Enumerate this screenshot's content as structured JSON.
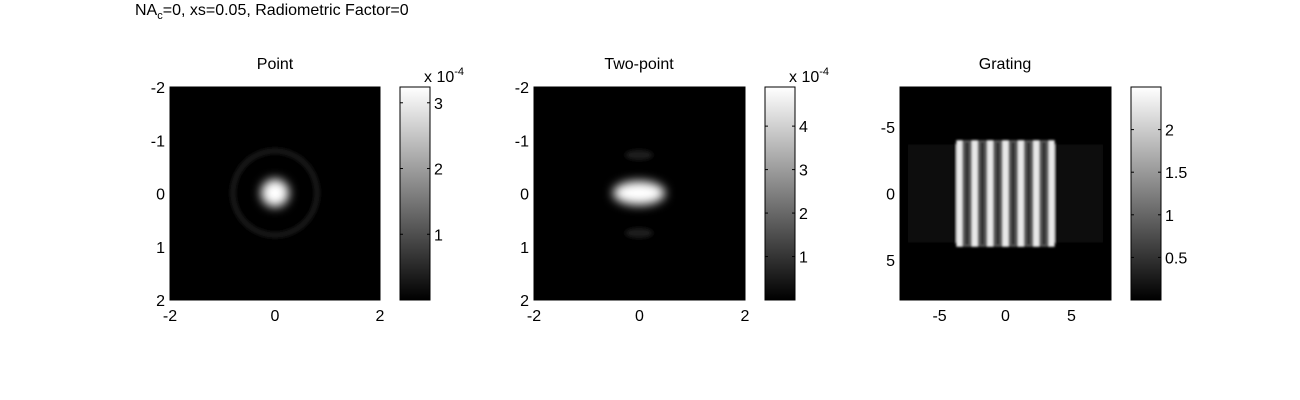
{
  "figure": {
    "suptitle": {
      "prefix": "NA",
      "subscript": "c",
      "suffix": "=0, xs=0.05, Radiometric Factor=0"
    }
  },
  "chart_data": [
    {
      "type": "heatmap",
      "title": "Point",
      "xlabel": "",
      "ylabel": "",
      "xlim": [
        -2,
        2
      ],
      "ylim": [
        -2,
        2
      ],
      "y_direction": "reversed",
      "x_ticks": [
        -2,
        0,
        2
      ],
      "x_tick_labels": [
        "-2",
        "0",
        "2"
      ],
      "y_ticks": [
        -2,
        -1,
        0,
        1,
        2
      ],
      "y_tick_labels": [
        "-2",
        "-1",
        "0",
        "1",
        "2"
      ],
      "colormap": "gray",
      "pattern": "single centered airy spot with faint ring",
      "colorbar": {
        "range": [
          0,
          0.000324
        ],
        "ticks": [
          0.0001,
          0.0002,
          0.0003
        ],
        "tick_labels": [
          "1",
          "2",
          "3"
        ],
        "multiplier": "x 10",
        "exponent": "-4"
      }
    },
    {
      "type": "heatmap",
      "title": "Two-point",
      "xlabel": "",
      "ylabel": "",
      "xlim": [
        -2,
        2
      ],
      "ylim": [
        -2,
        2
      ],
      "y_direction": "reversed",
      "x_ticks": [
        -2,
        0,
        2
      ],
      "x_tick_labels": [
        "-2",
        "0",
        "2"
      ],
      "y_ticks": [
        -2,
        -1,
        0,
        1,
        2
      ],
      "y_tick_labels": [
        "-2",
        "-1",
        "0",
        "1",
        "2"
      ],
      "colormap": "gray",
      "pattern": "two overlapping spots side by side at x=-0.05 and x=0.05",
      "colorbar": {
        "range": [
          0,
          0.00049
        ],
        "ticks": [
          0.0001,
          0.0002,
          0.0003,
          0.0004
        ],
        "tick_labels": [
          "1",
          "2",
          "3",
          "4"
        ],
        "multiplier": "x 10",
        "exponent": "-4"
      }
    },
    {
      "type": "heatmap",
      "title": "Grating",
      "xlabel": "",
      "ylabel": "",
      "xlim": [
        -8,
        8
      ],
      "ylim": [
        -8,
        8
      ],
      "y_direction": "reversed",
      "x_ticks": [
        -5,
        0,
        5
      ],
      "x_tick_labels": [
        "-5",
        "0",
        "5"
      ],
      "y_ticks": [
        -5,
        0,
        5
      ],
      "y_tick_labels": [
        "-5",
        "0",
        "5"
      ],
      "colormap": "gray",
      "pattern": "square grating of vertical bright lines, x from -3.5 to 3.5, y from -4 to 4",
      "grating": {
        "x_range": [
          -3.5,
          3.5
        ],
        "y_range": [
          -4,
          4
        ],
        "lines": 7
      },
      "colorbar": {
        "range": [
          0,
          2.5
        ],
        "ticks": [
          0.5,
          1,
          1.5,
          2
        ],
        "tick_labels": [
          "0.5",
          "1",
          "1.5",
          "2"
        ],
        "multiplier": "",
        "exponent": ""
      }
    }
  ]
}
